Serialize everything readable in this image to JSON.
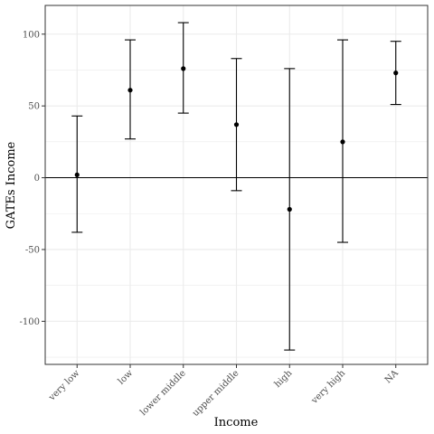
{
  "chart_data": {
    "type": "scatter",
    "subtype": "point-with-errorbars",
    "title": "",
    "xlabel": "Income",
    "ylabel": "GATEs Income",
    "categories": [
      "very low",
      "low",
      "lower middle",
      "upper middle",
      "high",
      "very high",
      "NA"
    ],
    "series": [
      {
        "values": [
          2,
          61,
          76,
          37,
          -22,
          25,
          73
        ],
        "lower": [
          -38,
          27,
          45,
          -9,
          -120,
          -45,
          51
        ],
        "upper": [
          43,
          96,
          108,
          83,
          76,
          96,
          95
        ]
      }
    ],
    "ylim": [
      -130,
      120
    ],
    "yticks": [
      -100,
      -50,
      0,
      50,
      100
    ],
    "reference_line": 0,
    "grid": true,
    "legend": "none",
    "colors": {
      "points": "#000000",
      "errorbars": "#000000",
      "grid": "#ebebeb",
      "panel_border": "#333333",
      "background": "#ffffff"
    }
  }
}
